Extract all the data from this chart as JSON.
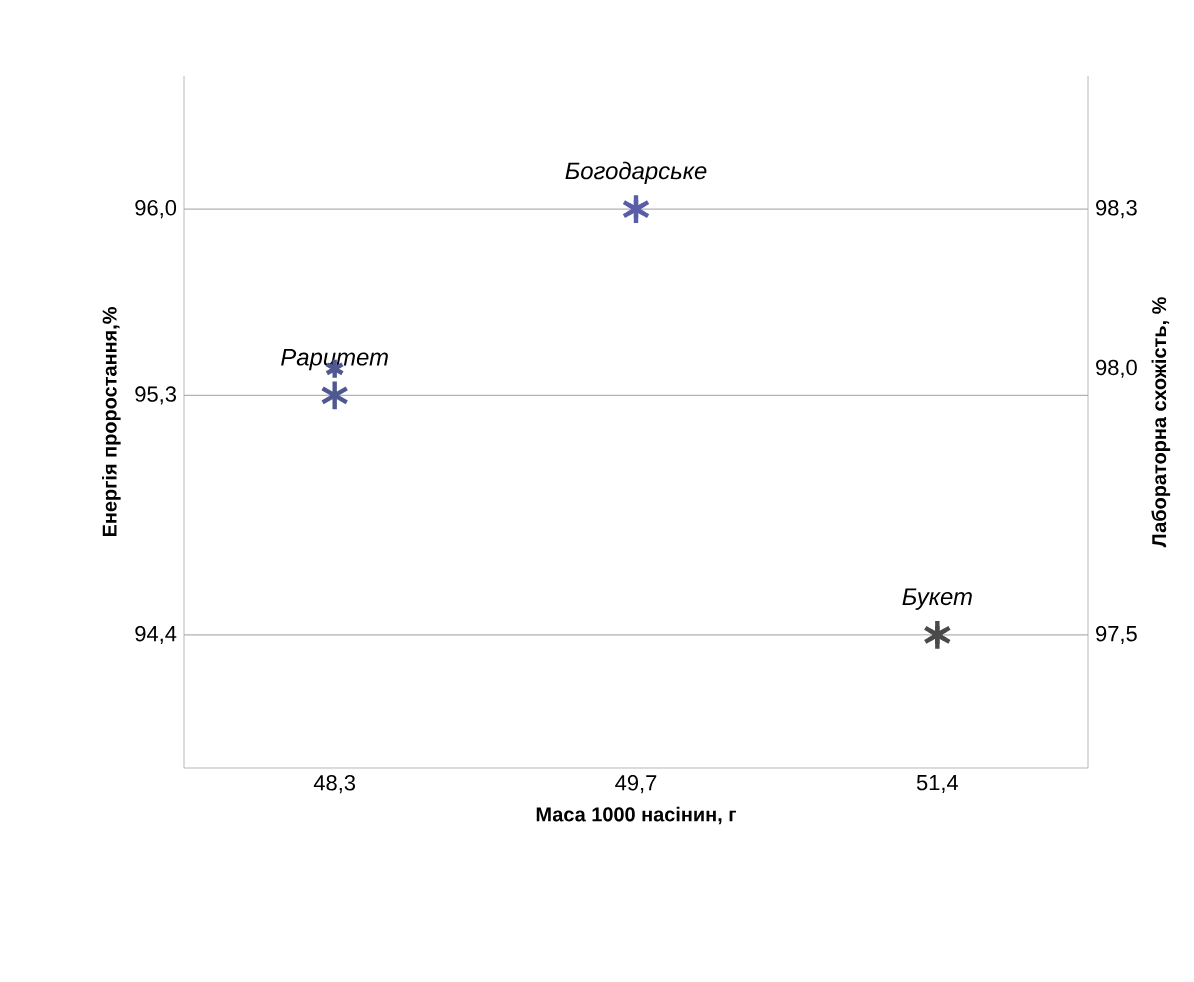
{
  "chart_data": {
    "type": "scatter",
    "xlabel": "Маса 1000 насінин, г",
    "ylabel": "Енергія проростання,%",
    "y2label": "Лабораторна схожість, %",
    "categories": [
      "48,3",
      "49,7",
      "51,4"
    ],
    "series": [
      {
        "values": [
          95.3,
          96.0,
          94.4
        ],
        "colors": [
          "#4f5890",
          "#5a5ea8",
          "#4a4a4a"
        ]
      },
      {
        "values": [
          98.0,
          98.3,
          97.5
        ],
        "colors": [
          "#4f5890",
          "#5a5ea8",
          "#4a4a4a"
        ],
        "axis": "y2"
      }
    ],
    "ylim": [
      93.9,
      96.5
    ],
    "yticks": [
      {
        "value": 94.4,
        "label": "94,4"
      },
      {
        "value": 95.3,
        "label": "95,3"
      },
      {
        "value": 96.0,
        "label": "96,0"
      }
    ],
    "y2lim": [
      97.25,
      98.55
    ],
    "y2ticks": [
      {
        "value": 97.5,
        "label": "97,5"
      },
      {
        "value": 98.0,
        "label": "98,0"
      },
      {
        "value": 98.3,
        "label": "98,3"
      }
    ],
    "annotations": [
      {
        "text": "Раритет",
        "x": "48,3",
        "y": 95.3
      },
      {
        "text": "Богодарське",
        "x": "49,7",
        "y": 96.0
      },
      {
        "text": "Букет",
        "x": "51,4",
        "y": 94.4
      }
    ],
    "grid": "y",
    "marker": "cross"
  }
}
